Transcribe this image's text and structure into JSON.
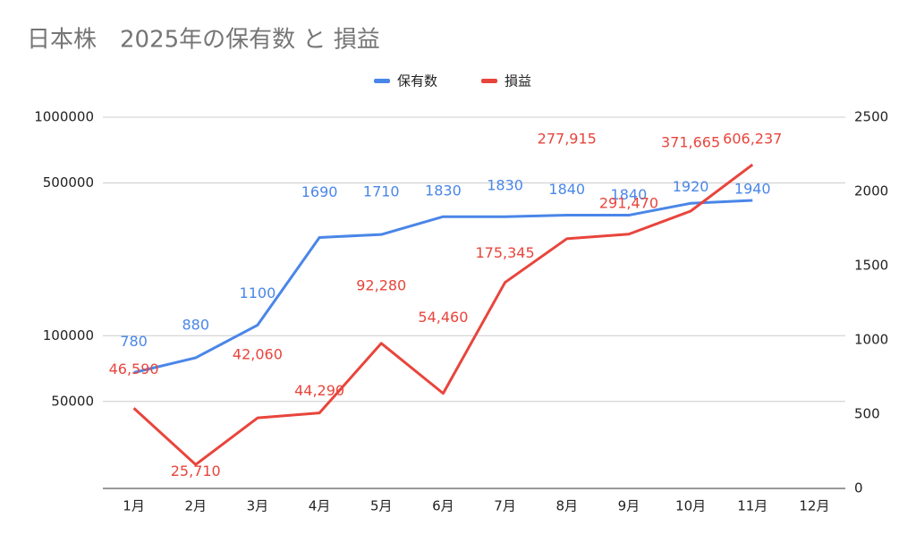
{
  "chart_data": {
    "type": "line",
    "title": "日本株　2025年の保有数 と 損益",
    "categories": [
      "1月",
      "2月",
      "3月",
      "4月",
      "5月",
      "6月",
      "7月",
      "8月",
      "9月",
      "10月",
      "11月",
      "12月"
    ],
    "series": [
      {
        "name": "保有数",
        "color": "#4a86e8",
        "axis": "y2",
        "values": [
          780,
          880,
          1100,
          1690,
          1710,
          1830,
          1830,
          1840,
          1840,
          1920,
          1940,
          null
        ]
      },
      {
        "name": "損益",
        "color": "#e8453c",
        "axis": "y",
        "values": [
          46590,
          25710,
          42060,
          44290,
          92280,
          54460,
          175345,
          277915,
          291470,
          371665,
          606237,
          null
        ],
        "value_labels": [
          "46,590",
          "25,710",
          "42,060",
          "44,290",
          "92,280",
          "54,460",
          "175,345",
          "277,915",
          "291,470",
          "371,665",
          "606,237",
          null
        ]
      }
    ],
    "ylim": [
      20000,
      1000000
    ],
    "yticks": [
      50000,
      100000,
      500000,
      1000000
    ],
    "yscale": "log",
    "y2lim": [
      0,
      2500
    ],
    "y2ticks": [
      0,
      500,
      1000,
      1500,
      2000,
      2500
    ],
    "grid": true,
    "legend": "top"
  }
}
